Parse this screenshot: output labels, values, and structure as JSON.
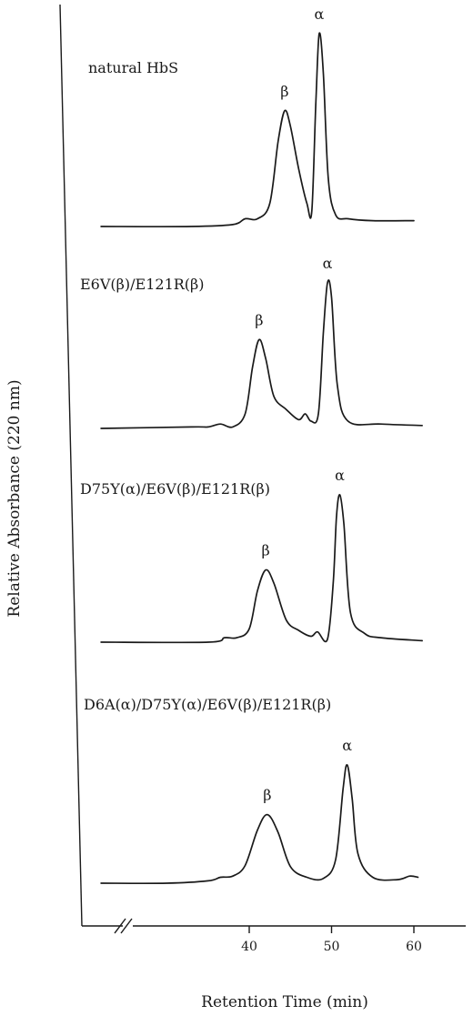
{
  "chart_data": {
    "type": "line",
    "xlabel": "Retention Time (min)",
    "ylabel": "Relative Absorbance (220 nm)",
    "x_ticks": [
      40,
      50,
      60
    ],
    "x_axis_break": true,
    "grid": false,
    "series": [
      {
        "name": "natural HbS",
        "peaks": [
          {
            "label": "β",
            "retention_min": 44.3,
            "relative_height": 0.6
          },
          {
            "label": "α",
            "retention_min": 48.5,
            "relative_height": 1.0
          }
        ],
        "x": [
          22,
          33,
          38,
          39.5,
          41,
          42.5,
          43.5,
          44.3,
          45,
          46,
          47,
          47.6,
          48.1,
          48.5,
          49,
          49.6,
          50.5,
          52,
          55,
          60
        ],
        "y": [
          0.0,
          0.0,
          0.01,
          0.04,
          0.04,
          0.12,
          0.44,
          0.6,
          0.52,
          0.3,
          0.12,
          0.08,
          0.65,
          1.0,
          0.8,
          0.25,
          0.06,
          0.04,
          0.03,
          0.03
        ]
      },
      {
        "name": "E6V(β)/E121R(β)",
        "peaks": [
          {
            "label": "β",
            "retention_min": 41.2,
            "relative_height": 0.61
          },
          {
            "label": "α",
            "retention_min": 49.5,
            "relative_height": 1.0
          }
        ],
        "x": [
          22,
          33,
          35,
          36.5,
          38,
          39.5,
          40.4,
          41.2,
          42,
          43,
          44.5,
          46,
          46.8,
          47.5,
          48.4,
          49,
          49.5,
          50,
          50.7,
          52,
          56,
          61
        ],
        "y": [
          0.0,
          0.01,
          0.01,
          0.03,
          0.01,
          0.1,
          0.42,
          0.61,
          0.48,
          0.22,
          0.13,
          0.06,
          0.1,
          0.05,
          0.1,
          0.65,
          1.0,
          0.9,
          0.3,
          0.05,
          0.03,
          0.02
        ]
      },
      {
        "name": "D75Y(α)/E6V(β)/E121R(β)",
        "peaks": [
          {
            "label": "β",
            "retention_min": 42.0,
            "relative_height": 0.49
          },
          {
            "label": "α",
            "retention_min": 51.0,
            "relative_height": 1.0
          }
        ],
        "x": [
          22,
          35,
          37,
          38.5,
          40,
          41,
          42,
          43,
          44.5,
          46,
          47.5,
          48.3,
          49.5,
          50.2,
          50.6,
          51,
          51.5,
          52.3,
          54,
          56,
          61
        ],
        "y": [
          0.0,
          0.0,
          0.03,
          0.03,
          0.09,
          0.35,
          0.49,
          0.4,
          0.15,
          0.08,
          0.04,
          0.07,
          0.02,
          0.4,
          0.85,
          1.0,
          0.8,
          0.2,
          0.06,
          0.03,
          0.01
        ]
      },
      {
        "name": "D6A(α)/D75Y(α)/E6V(β)/E121R(β)",
        "peaks": [
          {
            "label": "β",
            "retention_min": 42.2,
            "relative_height": 0.58
          },
          {
            "label": "α",
            "retention_min": 51.9,
            "relative_height": 1.0
          }
        ],
        "x": [
          22,
          30,
          35,
          36.5,
          38,
          39.5,
          41,
          42.2,
          43.5,
          45,
          47,
          49,
          50.5,
          51.4,
          51.9,
          52.5,
          53.2,
          55,
          58,
          59.5,
          60.5
        ],
        "y": [
          0.0,
          0.0,
          0.02,
          0.05,
          0.06,
          0.15,
          0.45,
          0.58,
          0.43,
          0.14,
          0.05,
          0.04,
          0.2,
          0.8,
          1.0,
          0.72,
          0.25,
          0.05,
          0.03,
          0.06,
          0.05
        ]
      }
    ]
  }
}
